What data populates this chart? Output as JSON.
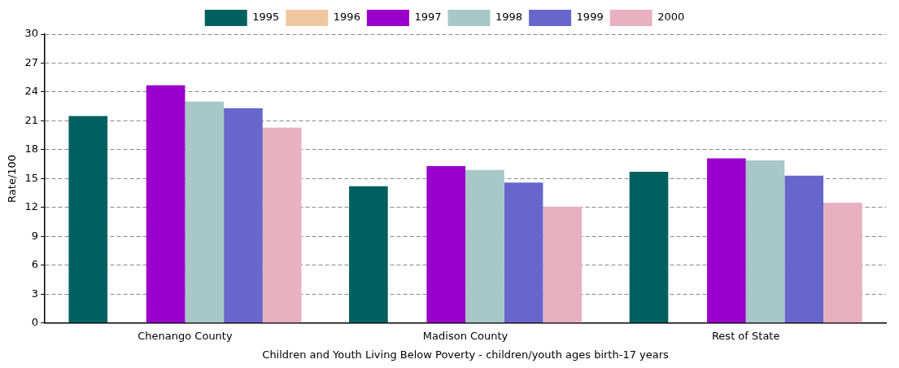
{
  "chart_data": {
    "type": "bar",
    "xlabel": "Children and Youth Living Below Poverty - children/youth ages birth-17 years",
    "ylabel": "Rate/100",
    "categories": [
      "Chenango County",
      "Madison County",
      "Rest of State"
    ],
    "series": [
      {
        "name": "1995",
        "color": "#006060",
        "values": [
          21.5,
          14.2,
          15.7
        ]
      },
      {
        "name": "1996",
        "color": "#f0c8a0",
        "values": [
          null,
          null,
          null
        ]
      },
      {
        "name": "1997",
        "color": "#9900cc",
        "values": [
          24.7,
          16.3,
          17.1
        ]
      },
      {
        "name": "1998",
        "color": "#a8c8c8",
        "values": [
          23.0,
          15.9,
          16.9
        ]
      },
      {
        "name": "1999",
        "color": "#6666cc",
        "values": [
          22.3,
          14.6,
          15.3
        ]
      },
      {
        "name": "2000",
        "color": "#e8b0c0",
        "values": [
          20.3,
          12.1,
          12.5
        ]
      }
    ],
    "ylim": [
      0,
      30
    ],
    "yticks": [
      0,
      3,
      6,
      9,
      12,
      15,
      18,
      21,
      24,
      27,
      30
    ],
    "grid": "y",
    "legend": "top"
  }
}
